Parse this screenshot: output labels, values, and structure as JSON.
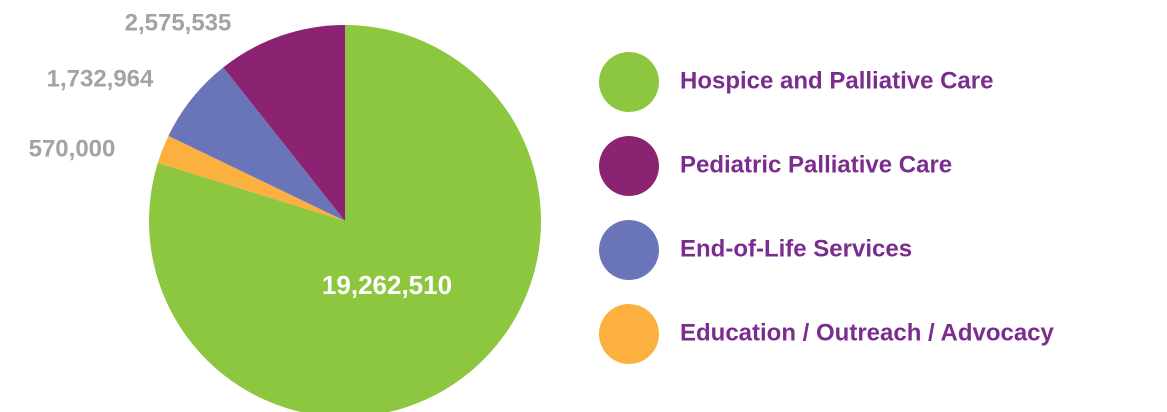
{
  "chart_data": {
    "type": "pie",
    "categories": [
      "Hospice and Palliative Care",
      "Pediatric Palliative Care",
      "End-of-Life Services",
      "Education / Outreach / Advocacy"
    ],
    "values": [
      19262510,
      2575535,
      1732964,
      570000
    ],
    "value_labels": [
      "19,262,510",
      "2,575,535",
      "1,732,964",
      "570,000"
    ],
    "colors": [
      "#8dc63f",
      "#8b2372",
      "#6a74b8",
      "#fbb040"
    ]
  }
}
